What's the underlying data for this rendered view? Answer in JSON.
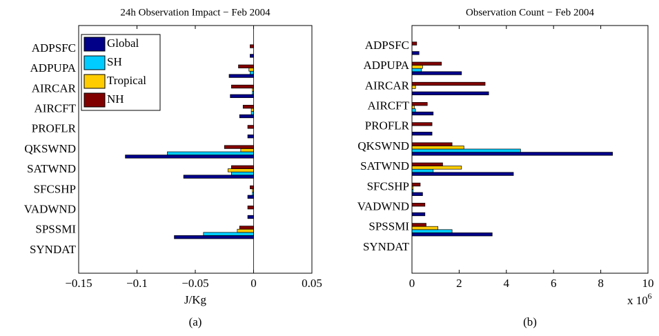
{
  "chart_data": [
    {
      "type": "bar",
      "orientation": "horizontal",
      "title": "24h Observation Impact − Feb 2004",
      "x_label": "J/Kg",
      "caption": "(a)",
      "categories": [
        "ADPSFC",
        "ADPUPA",
        "AIRCAR",
        "AIRCFT",
        "PROFLR",
        "QKSWND",
        "SATWND",
        "SFCSHP",
        "VADWND",
        "SPSSMI",
        "SYNDAT"
      ],
      "series": [
        {
          "name": "Global",
          "color": "#000088",
          "values": [
            -0.003,
            -0.021,
            -0.02,
            -0.012,
            -0.005,
            -0.11,
            -0.06,
            -0.005,
            -0.005,
            -0.068,
            0
          ]
        },
        {
          "name": "SH",
          "color": "#00ccff",
          "values": [
            0,
            -0.003,
            -0.001,
            -0.002,
            0,
            -0.074,
            -0.019,
            -0.001,
            0,
            -0.043,
            0
          ]
        },
        {
          "name": "Tropical",
          "color": "#ffcc00",
          "values": [
            0,
            -0.004,
            -0.001,
            -0.002,
            0,
            -0.011,
            -0.022,
            -0.001,
            0,
            -0.014,
            0
          ]
        },
        {
          "name": "NH",
          "color": "#800000",
          "values": [
            -0.003,
            -0.013,
            -0.019,
            -0.009,
            -0.005,
            -0.025,
            -0.019,
            -0.003,
            -0.005,
            -0.012,
            0
          ]
        }
      ],
      "xlim": [
        -0.15,
        0.05
      ],
      "xticks": [
        {
          "value": -0.15,
          "label": "−0.15"
        },
        {
          "value": -0.1,
          "label": "−0.1"
        },
        {
          "value": -0.05,
          "label": "−0.05"
        },
        0,
        0.05
      ],
      "legend": "upper left"
    },
    {
      "type": "bar",
      "orientation": "horizontal",
      "title": "Observation Count − Feb 2004",
      "caption": "(b)",
      "x_scale_label": {
        "text": "x 10",
        "exponent": "6"
      },
      "categories": [
        "ADPSFC",
        "ADPUPA",
        "AIRCAR",
        "AIRCFT",
        "PROFLR",
        "QKSWND",
        "SATWND",
        "SFCSHP",
        "VADWND",
        "SPSSMI",
        "SYNDAT"
      ],
      "series": [
        {
          "color": "#000088",
          "values": [
            0.3,
            2.1,
            3.25,
            0.9,
            0.85,
            8.5,
            4.3,
            0.45,
            0.55,
            3.4,
            0
          ]
        },
        {
          "color": "#00ccff",
          "values": [
            0,
            0.4,
            0,
            0.15,
            0,
            4.6,
            0.9,
            0.05,
            0,
            1.7,
            0
          ]
        },
        {
          "color": "#ffcc00",
          "values": [
            0,
            0.45,
            0.15,
            0.1,
            0,
            2.2,
            2.1,
            0.05,
            0,
            1.1,
            0
          ]
        },
        {
          "color": "#800000",
          "values": [
            0.2,
            1.25,
            3.1,
            0.65,
            0.85,
            1.7,
            1.3,
            0.35,
            0.55,
            0.6,
            0
          ]
        }
      ],
      "xlim": [
        0,
        10
      ],
      "xticks": [
        0,
        2,
        4,
        6,
        8,
        10
      ]
    }
  ]
}
